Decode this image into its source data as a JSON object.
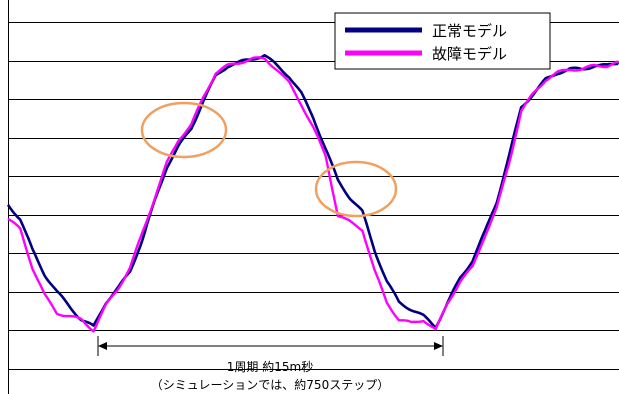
{
  "chart_data": {
    "type": "line",
    "title": "",
    "xlabel": "",
    "ylabel": "",
    "grid": true,
    "legend_position": "top-right",
    "x": [
      0,
      2,
      4,
      6,
      8,
      10,
      12,
      14,
      16,
      18,
      20,
      22,
      24,
      26,
      28,
      30,
      32,
      34,
      36,
      38,
      40,
      42,
      44,
      46,
      48,
      50,
      52,
      54,
      56,
      58,
      60,
      62,
      64,
      66,
      68,
      70,
      72,
      74,
      76,
      78,
      80,
      82,
      84,
      86,
      88,
      90,
      92,
      94,
      96,
      98,
      100
    ],
    "series": [
      {
        "name": "正常モデル",
        "color": "#000080",
        "values": [
          4.4,
          4.0,
          3.1,
          2.4,
          1.9,
          1.5,
          1.1,
          0.9,
          1.6,
          2.0,
          2.5,
          3.4,
          4.5,
          5.5,
          6.1,
          6.6,
          7.4,
          8.1,
          8.4,
          8.5,
          8.6,
          8.7,
          8.4,
          8.1,
          7.6,
          6.9,
          6.0,
          5.1,
          4.6,
          4.2,
          3.1,
          2.2,
          1.6,
          1.4,
          1.2,
          0.9,
          1.6,
          2.3,
          2.8,
          3.6,
          4.5,
          5.8,
          7.2,
          7.6,
          8.0,
          8.2,
          8.3,
          8.3,
          8.4,
          8.4,
          8.5
        ],
        "events": []
      },
      {
        "name": "故障モデル",
        "color": "#ff00ff",
        "values": [
          4.0,
          3.7,
          2.6,
          1.8,
          1.3,
          1.2,
          1.1,
          0.8,
          1.5,
          2.0,
          2.6,
          3.6,
          4.6,
          5.6,
          6.3,
          6.7,
          7.5,
          8.2,
          8.4,
          8.5,
          8.6,
          8.6,
          8.3,
          7.9,
          7.3,
          6.6,
          5.8,
          4.1,
          3.9,
          3.7,
          2.5,
          1.6,
          1.1,
          1.0,
          1.1,
          0.8,
          1.6,
          2.2,
          2.6,
          3.5,
          4.3,
          5.6,
          7.1,
          7.6,
          8.0,
          8.2,
          8.3,
          8.3,
          8.4,
          8.4,
          8.5
        ]
      }
    ],
    "ylim": [
      0,
      10
    ],
    "xlim": [
      0,
      100
    ],
    "highlight_circles": 2,
    "annotation": {
      "line1": "1周期 約15m秒",
      "line2": "（シミュレーションでは、約750ステップ）"
    }
  }
}
